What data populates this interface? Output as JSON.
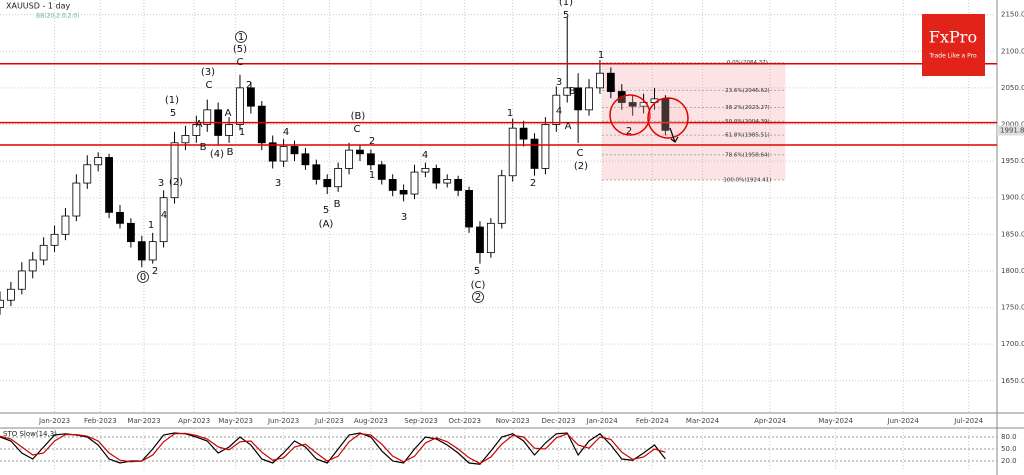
{
  "chart_data": [
    {
      "type": "candlestick",
      "title": "XAUUSD - 1 day",
      "indicator_label": "BB(20,2.0,2.0)",
      "x": [
        -25,
        -20,
        -15,
        -10,
        -5,
        0,
        5,
        10,
        15,
        20,
        25,
        30,
        35,
        40,
        45,
        50,
        55,
        60,
        65,
        70,
        75,
        80,
        85,
        90,
        95,
        100,
        105,
        110,
        115,
        120,
        125,
        130,
        135,
        140,
        145,
        150,
        155,
        160,
        165,
        170,
        175,
        180,
        185,
        190,
        195,
        200,
        205,
        210,
        215,
        220,
        225,
        230,
        235,
        240,
        245,
        250,
        255,
        260,
        265,
        270,
        275,
        280
      ],
      "open": [
        1750,
        1760,
        1775,
        1800,
        1815,
        1835,
        1850,
        1875,
        1920,
        1945,
        1955,
        1880,
        1865,
        1840,
        1815,
        1840,
        1900,
        1975,
        1985,
        2000,
        2020,
        1985,
        2000,
        2050,
        2025,
        1975,
        1950,
        1970,
        1960,
        1945,
        1925,
        1915,
        1940,
        1965,
        1960,
        1945,
        1925,
        1910,
        1905,
        1935,
        1940,
        1920,
        1925,
        1910,
        1860,
        1825,
        1865,
        1930,
        1995,
        1980,
        1940,
        2000,
        2040,
        2050,
        2020,
        2050,
        2070,
        2045,
        2030,
        2025,
        2030,
        2035
      ],
      "high": [
        1772,
        1785,
        1812,
        1826,
        1846,
        1862,
        1886,
        1932,
        1958,
        1962,
        1960,
        1890,
        1872,
        1848,
        1852,
        1910,
        1990,
        1998,
        2012,
        2034,
        2030,
        2010,
        2068,
        2058,
        2032,
        1985,
        1980,
        1978,
        1968,
        1952,
        1932,
        1948,
        1975,
        1972,
        1966,
        1950,
        1932,
        1918,
        1945,
        1948,
        1945,
        1932,
        1930,
        1915,
        1868,
        1872,
        1938,
        2008,
        2005,
        1988,
        2010,
        2052,
        2146,
        2070,
        2062,
        2088,
        2078,
        2055,
        2040,
        2042,
        2050,
        2040
      ],
      "low": [
        1740,
        1752,
        1768,
        1790,
        1808,
        1826,
        1842,
        1868,
        1912,
        1936,
        1872,
        1858,
        1832,
        1805,
        1810,
        1832,
        1892,
        1965,
        1975,
        1990,
        1972,
        1975,
        1992,
        2015,
        1965,
        1940,
        1942,
        1950,
        1938,
        1918,
        1905,
        1908,
        1932,
        1950,
        1938,
        1918,
        1902,
        1895,
        1898,
        1928,
        1912,
        1914,
        1902,
        1852,
        1810,
        1818,
        1858,
        1922,
        1970,
        1930,
        1932,
        1990,
        2030,
        1975,
        2012,
        2042,
        2036,
        2020,
        2012,
        2015,
        2020,
        1985
      ],
      "close": [
        1760,
        1775,
        1800,
        1815,
        1835,
        1850,
        1875,
        1920,
        1945,
        1955,
        1880,
        1865,
        1840,
        1815,
        1840,
        1900,
        1975,
        1985,
        2000,
        2020,
        1985,
        2000,
        2050,
        2025,
        1975,
        1950,
        1970,
        1960,
        1945,
        1925,
        1915,
        1940,
        1965,
        1960,
        1945,
        1925,
        1910,
        1905,
        1935,
        1940,
        1920,
        1925,
        1910,
        1860,
        1825,
        1865,
        1930,
        1995,
        1980,
        1940,
        2000,
        2040,
        2050,
        2020,
        2050,
        2070,
        2045,
        2030,
        2025,
        2030,
        2035,
        1992
      ],
      "xlim": [
        -25,
        432
      ],
      "ylim": [
        1606,
        2170
      ],
      "yticks": [
        {
          "value": 1650,
          "label": "1650.00"
        },
        {
          "value": 1700,
          "label": "1700.00"
        },
        {
          "value": 1750,
          "label": "1750.00"
        },
        {
          "value": 1800,
          "label": "1800.00"
        },
        {
          "value": 1850,
          "label": "1850.00"
        },
        {
          "value": 1900,
          "label": "1900.00"
        },
        {
          "value": 1950,
          "label": "1950.00"
        },
        {
          "value": 2000,
          "label": "2000.00"
        },
        {
          "value": 2050,
          "label": "2050.00"
        },
        {
          "value": 2100,
          "label": "2100.00"
        },
        {
          "value": 2150,
          "label": "2150.00"
        }
      ],
      "xticks": [
        {
          "value": 0,
          "label": "Jan-2023"
        },
        {
          "value": 21,
          "label": "Feb-2023"
        },
        {
          "value": 41,
          "label": "Mar-2023"
        },
        {
          "value": 64,
          "label": "Apr-2023"
        },
        {
          "value": 83,
          "label": "May-2023"
        },
        {
          "value": 105,
          "label": "Jun-2023"
        },
        {
          "value": 126,
          "label": "Jul-2023"
        },
        {
          "value": 145,
          "label": "Aug-2023"
        },
        {
          "value": 168,
          "label": "Sep-2023"
        },
        {
          "value": 188,
          "label": "Oct-2023"
        },
        {
          "value": 210,
          "label": "Nov-2023"
        },
        {
          "value": 231,
          "label": "Dec-2023"
        },
        {
          "value": 251,
          "label": "Jan-2024"
        },
        {
          "value": 274,
          "label": "Feb-2024"
        },
        {
          "value": 297,
          "label": "Mar-2024"
        },
        {
          "value": 328,
          "label": "Apr-2024"
        },
        {
          "value": 358,
          "label": "May-2024"
        },
        {
          "value": 389,
          "label": "Jun-2024"
        },
        {
          "value": 419,
          "label": "Jul-2024"
        }
      ],
      "grid": true,
      "up_color": "#ffffff",
      "down_color": "#000000",
      "hlines": [
        2083,
        2002.5,
        1972
      ],
      "hline_color": "#e00000",
      "fib_x": [
        251,
        335
      ],
      "fib_levels": [
        {
          "value": 2084.37,
          "label": "0.0%(2084.37)"
        },
        {
          "value": 2046.62,
          "label": "23.6%(2046.62)"
        },
        {
          "value": 2023.27,
          "label": "38.2%(2023.27)"
        },
        {
          "value": 2004.39,
          "label": "50.0%(2004.39)"
        },
        {
          "value": 1985.51,
          "label": "61.8%(1985.51)"
        },
        {
          "value": 1958.64,
          "label": "78.6%(1958.64)"
        },
        {
          "value": 1924.41,
          "label": "100.0%(1924.41)"
        }
      ],
      "last_price": {
        "value": 1991.81,
        "label": "1991.81"
      },
      "annotations": [
        "0",
        "1",
        "2",
        "3",
        "4",
        "(2)",
        "(1)",
        "5",
        "(3)",
        "C",
        "A",
        "B",
        "A",
        "B",
        "(4)",
        "1",
        "2",
        "1",
        "(5)",
        "C",
        "4",
        "3",
        "5",
        "(A)",
        "B",
        "(B)",
        "C",
        "2",
        "1",
        "3",
        "4",
        "5",
        "(C)",
        "2",
        "1",
        "2",
        "3",
        "4",
        "(1)",
        "5",
        "A",
        "B",
        "C",
        "(2)",
        "1",
        "2"
      ]
    },
    {
      "type": "line",
      "title": "STO Slow(14,3)",
      "ylim": [
        0,
        100
      ],
      "yticks": [
        {
          "value": 80,
          "label": "80.0"
        },
        {
          "value": 50,
          "label": "50.0"
        },
        {
          "value": 20,
          "label": "20.0"
        }
      ],
      "series": [
        {
          "color": "#000000",
          "values": [
            80,
            70,
            40,
            25,
            55,
            85,
            88,
            85,
            80,
            60,
            25,
            15,
            20,
            20,
            50,
            85,
            90,
            88,
            80,
            70,
            40,
            55,
            80,
            60,
            25,
            15,
            40,
            70,
            55,
            25,
            15,
            50,
            85,
            90,
            80,
            45,
            20,
            15,
            50,
            80,
            75,
            60,
            40,
            15,
            12,
            45,
            80,
            88,
            70,
            35,
            65,
            88,
            90,
            35,
            70,
            88,
            60,
            25,
            22,
            40,
            60,
            25
          ]
        },
        {
          "color": "#cc0000",
          "values": [
            82,
            75,
            55,
            35,
            40,
            70,
            86,
            86,
            82,
            70,
            40,
            22,
            18,
            20,
            35,
            68,
            88,
            89,
            84,
            75,
            55,
            48,
            68,
            70,
            42,
            22,
            28,
            55,
            62,
            40,
            20,
            32,
            68,
            88,
            85,
            62,
            32,
            18,
            32,
            65,
            78,
            68,
            50,
            28,
            14,
            30,
            62,
            84,
            80,
            52,
            50,
            78,
            88,
            60,
            52,
            80,
            74,
            42,
            24,
            30,
            50,
            42
          ]
        }
      ]
    }
  ],
  "logo": {
    "title": "FxPro",
    "tagline": "Trade Like a Pro"
  }
}
